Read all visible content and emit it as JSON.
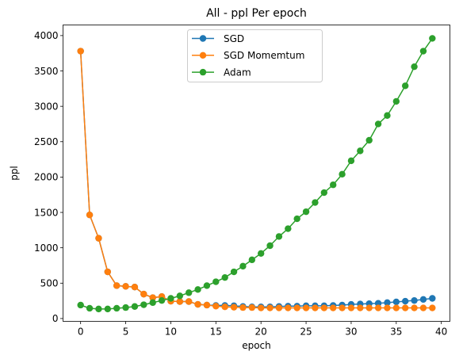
{
  "chart_data": {
    "type": "line",
    "title": "All - ppl Per epoch",
    "xlabel": "epoch",
    "ylabel": "ppl",
    "xlim": [
      -1.95,
      40.95
    ],
    "ylim": [
      -40,
      4150
    ],
    "xticks": [
      0,
      5,
      10,
      15,
      20,
      25,
      30,
      35,
      40
    ],
    "yticks": [
      0,
      500,
      1000,
      1500,
      2000,
      2500,
      3000,
      3500,
      4000
    ],
    "grid": false,
    "legend_position": "top-center",
    "x": [
      0,
      1,
      2,
      3,
      4,
      5,
      6,
      7,
      8,
      9,
      10,
      11,
      12,
      13,
      14,
      15,
      16,
      17,
      18,
      19,
      20,
      21,
      22,
      23,
      24,
      25,
      26,
      27,
      28,
      29,
      30,
      31,
      32,
      33,
      34,
      35,
      36,
      37,
      38,
      39
    ],
    "series": [
      {
        "name": "SGD",
        "color": "#1f77b4",
        "values": [
          3780,
          1465,
          1135,
          660,
          465,
          455,
          445,
          345,
          295,
          310,
          245,
          240,
          240,
          200,
          190,
          185,
          185,
          180,
          170,
          165,
          165,
          165,
          170,
          175,
          175,
          180,
          180,
          180,
          185,
          190,
          200,
          205,
          210,
          215,
          225,
          235,
          245,
          255,
          270,
          285
        ]
      },
      {
        "name": "SGD Momemtum",
        "color": "#ff7f0e",
        "values": [
          3780,
          1465,
          1135,
          660,
          465,
          455,
          445,
          345,
          295,
          310,
          245,
          240,
          240,
          200,
          190,
          175,
          165,
          160,
          155,
          155,
          150,
          150,
          150,
          150,
          150,
          150,
          150,
          150,
          150,
          150,
          150,
          150,
          150,
          150,
          150,
          150,
          150,
          150,
          150,
          150
        ]
      },
      {
        "name": "Adam",
        "color": "#2ca02c",
        "values": [
          190,
          145,
          135,
          135,
          145,
          155,
          170,
          195,
          225,
          255,
          285,
          320,
          365,
          410,
          465,
          520,
          580,
          660,
          740,
          830,
          920,
          1030,
          1160,
          1270,
          1410,
          1510,
          1640,
          1780,
          1890,
          2040,
          2230,
          2370,
          2520,
          2750,
          2870,
          3070,
          3290,
          3560,
          3780,
          3960
        ]
      }
    ]
  }
}
